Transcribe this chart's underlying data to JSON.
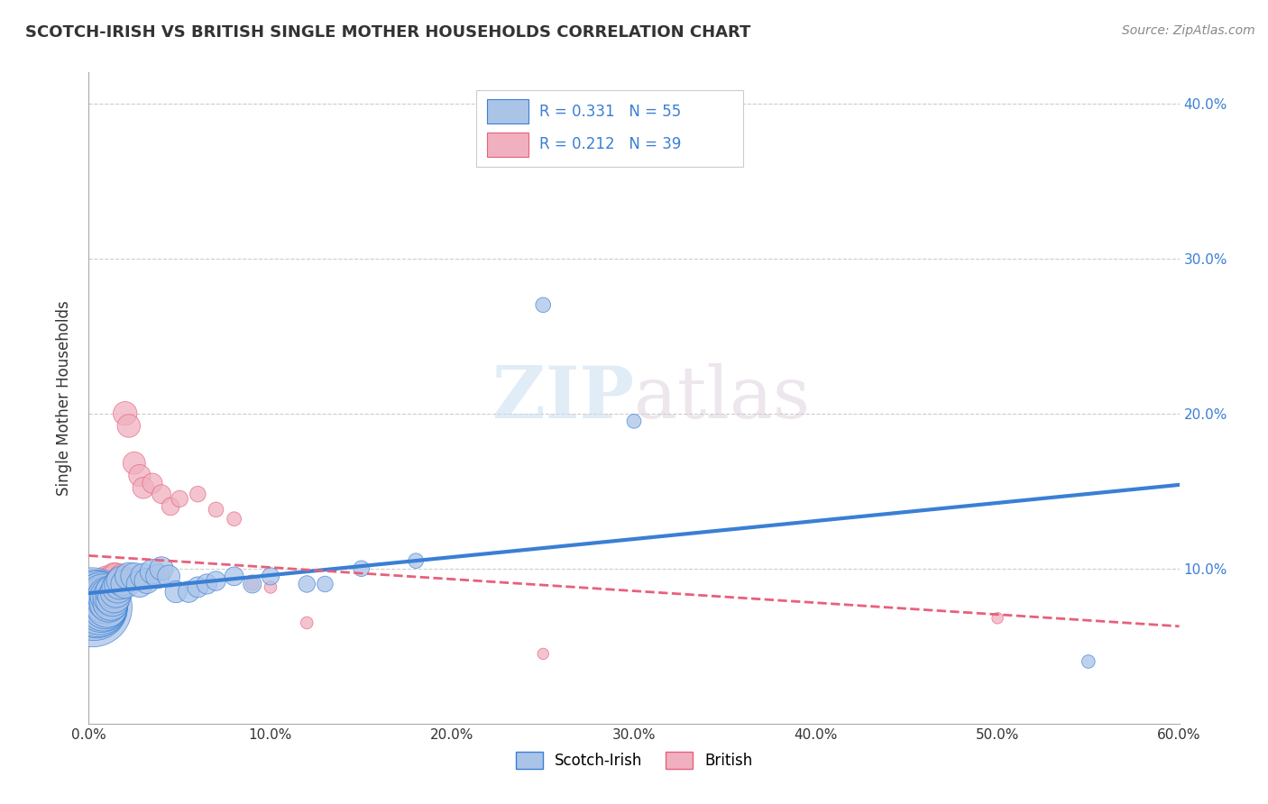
{
  "title": "SCOTCH-IRISH VS BRITISH SINGLE MOTHER HOUSEHOLDS CORRELATION CHART",
  "source_text": "Source: ZipAtlas.com",
  "ylabel": "Single Mother Households",
  "xlim": [
    0.0,
    0.6
  ],
  "ylim": [
    0.0,
    0.42
  ],
  "xtick_labels": [
    "0.0%",
    "",
    "10.0%",
    "",
    "20.0%",
    "",
    "30.0%",
    "",
    "40.0%",
    "",
    "50.0%",
    "",
    "60.0%"
  ],
  "xtick_vals": [
    0.0,
    0.05,
    0.1,
    0.15,
    0.2,
    0.25,
    0.3,
    0.35,
    0.4,
    0.45,
    0.5,
    0.55,
    0.6
  ],
  "ytick_labels": [
    "10.0%",
    "20.0%",
    "30.0%",
    "40.0%"
  ],
  "ytick_vals": [
    0.1,
    0.2,
    0.3,
    0.4
  ],
  "grid_color": "#cccccc",
  "background_color": "#ffffff",
  "scotch_irish_color": "#aac4e8",
  "british_color": "#f0b0c0",
  "scotch_irish_line_color": "#3a7fd5",
  "british_line_color": "#e8607a",
  "R_scotch": 0.331,
  "N_scotch": 55,
  "R_british": 0.212,
  "N_british": 39,
  "scotch_irish_x": [
    0.002,
    0.003,
    0.004,
    0.004,
    0.005,
    0.005,
    0.006,
    0.006,
    0.007,
    0.007,
    0.007,
    0.008,
    0.008,
    0.008,
    0.009,
    0.009,
    0.01,
    0.01,
    0.01,
    0.011,
    0.011,
    0.012,
    0.012,
    0.013,
    0.013,
    0.014,
    0.015,
    0.016,
    0.017,
    0.018,
    0.02,
    0.022,
    0.025,
    0.028,
    0.03,
    0.032,
    0.035,
    0.038,
    0.04,
    0.044,
    0.048,
    0.055,
    0.06,
    0.065,
    0.07,
    0.08,
    0.09,
    0.1,
    0.12,
    0.13,
    0.15,
    0.18,
    0.25,
    0.3,
    0.55
  ],
  "scotch_irish_y": [
    0.075,
    0.075,
    0.075,
    0.08,
    0.075,
    0.08,
    0.075,
    0.08,
    0.075,
    0.08,
    0.082,
    0.075,
    0.08,
    0.082,
    0.075,
    0.078,
    0.075,
    0.08,
    0.082,
    0.078,
    0.082,
    0.078,
    0.082,
    0.08,
    0.085,
    0.082,
    0.085,
    0.088,
    0.09,
    0.092,
    0.09,
    0.095,
    0.095,
    0.09,
    0.095,
    0.092,
    0.098,
    0.095,
    0.1,
    0.095,
    0.085,
    0.085,
    0.088,
    0.09,
    0.092,
    0.095,
    0.09,
    0.095,
    0.09,
    0.09,
    0.1,
    0.105,
    0.27,
    0.195,
    0.04
  ],
  "scotch_irish_size": [
    500,
    350,
    300,
    280,
    280,
    260,
    240,
    220,
    200,
    200,
    190,
    180,
    170,
    160,
    150,
    140,
    130,
    130,
    120,
    120,
    110,
    100,
    100,
    90,
    90,
    85,
    80,
    80,
    75,
    70,
    65,
    60,
    58,
    55,
    52,
    50,
    48,
    46,
    44,
    40,
    38,
    36,
    34,
    32,
    30,
    28,
    26,
    24,
    22,
    20,
    20,
    18,
    18,
    16,
    14
  ],
  "british_x": [
    0.002,
    0.003,
    0.004,
    0.005,
    0.005,
    0.006,
    0.006,
    0.007,
    0.007,
    0.008,
    0.008,
    0.009,
    0.009,
    0.01,
    0.01,
    0.011,
    0.012,
    0.013,
    0.014,
    0.015,
    0.016,
    0.018,
    0.02,
    0.022,
    0.025,
    0.028,
    0.03,
    0.035,
    0.04,
    0.045,
    0.05,
    0.06,
    0.07,
    0.08,
    0.09,
    0.1,
    0.12,
    0.25,
    0.5
  ],
  "british_y": [
    0.075,
    0.075,
    0.078,
    0.075,
    0.082,
    0.075,
    0.082,
    0.075,
    0.085,
    0.078,
    0.088,
    0.08,
    0.09,
    0.082,
    0.092,
    0.088,
    0.092,
    0.088,
    0.095,
    0.095,
    0.092,
    0.095,
    0.2,
    0.192,
    0.168,
    0.16,
    0.152,
    0.155,
    0.148,
    0.14,
    0.145,
    0.148,
    0.138,
    0.132,
    0.09,
    0.088,
    0.065,
    0.045,
    0.068
  ],
  "british_size": [
    200,
    180,
    160,
    140,
    130,
    120,
    110,
    100,
    95,
    90,
    85,
    80,
    78,
    75,
    72,
    68,
    65,
    62,
    58,
    55,
    52,
    48,
    45,
    42,
    40,
    38,
    36,
    32,
    28,
    25,
    22,
    20,
    18,
    16,
    14,
    12,
    12,
    10,
    10
  ]
}
